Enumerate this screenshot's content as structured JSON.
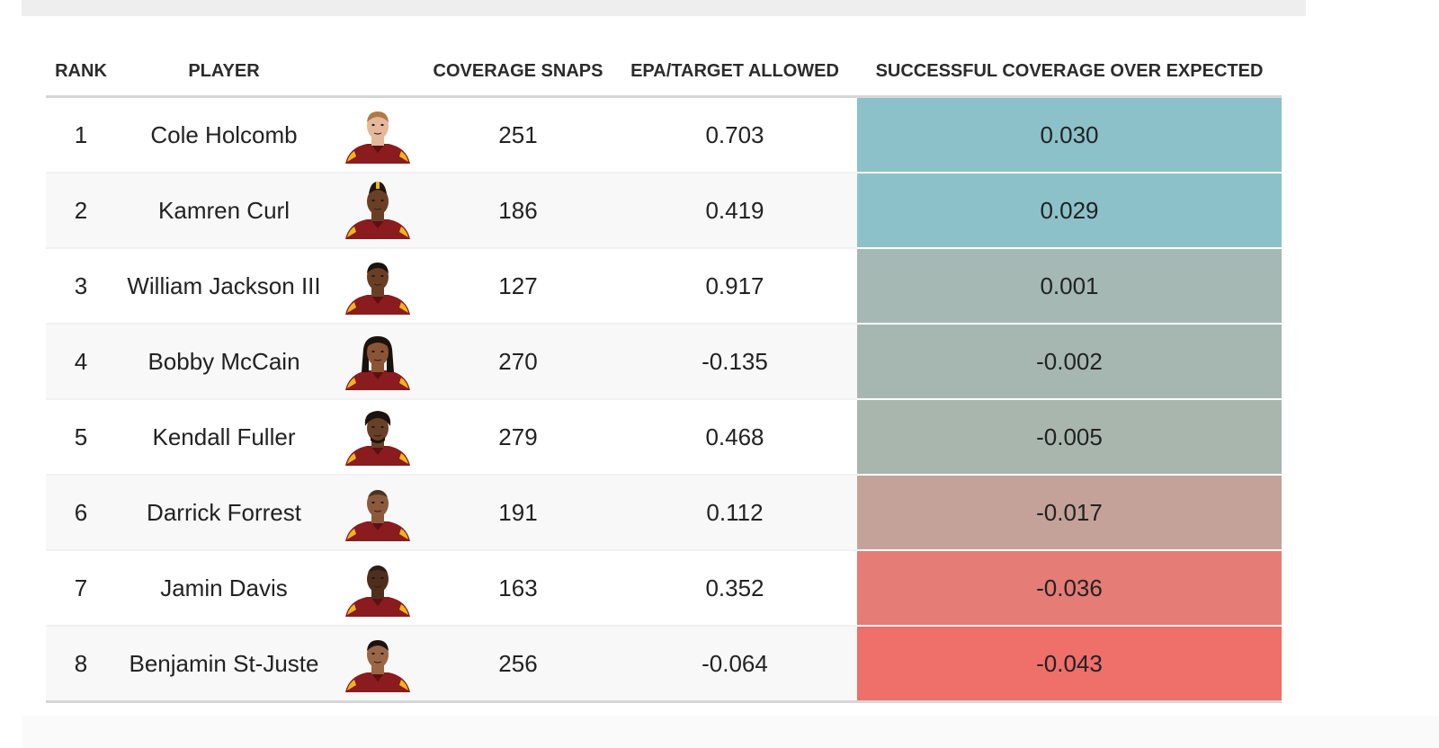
{
  "table": {
    "columns": {
      "rank": "RANK",
      "player": "PLAYER",
      "snaps": "COVERAGE SNAPS",
      "epa": "EPA/TARGET ALLOWED",
      "metric": "SUCCESSFUL COVERAGE OVER EXPECTED"
    },
    "rows": [
      {
        "rank": "1",
        "player": "Cole Holcomb",
        "snaps": "251",
        "epa": "0.703",
        "metric": "0.030",
        "metric_color": "#8dc1ca"
      },
      {
        "rank": "2",
        "player": "Kamren Curl",
        "snaps": "186",
        "epa": "0.419",
        "metric": "0.029",
        "metric_color": "#8dc1ca"
      },
      {
        "rank": "3",
        "player": "William Jackson III",
        "snaps": "127",
        "epa": "0.917",
        "metric": "0.001",
        "metric_color": "#a5b8b3"
      },
      {
        "rank": "4",
        "player": "Bobby McCain",
        "snaps": "270",
        "epa": "-0.135",
        "metric": "-0.002",
        "metric_color": "#a6b7b1"
      },
      {
        "rank": "5",
        "player": "Kendall Fuller",
        "snaps": "279",
        "epa": "0.468",
        "metric": "-0.005",
        "metric_color": "#a9b6ae"
      },
      {
        "rank": "6",
        "player": "Darrick Forrest",
        "snaps": "191",
        "epa": "0.112",
        "metric": "-0.017",
        "metric_color": "#c4a29a"
      },
      {
        "rank": "7",
        "player": "Jamin Davis",
        "snaps": "163",
        "epa": "0.352",
        "metric": "-0.036",
        "metric_color": "#e57c76"
      },
      {
        "rank": "8",
        "player": "Benjamin St-Juste",
        "snaps": "256",
        "epa": "-0.064",
        "metric": "-0.043",
        "metric_color": "#ef6f6a"
      }
    ]
  },
  "headshots": [
    {
      "skin": "#e6b89b",
      "hair": "#b07a45",
      "style": "short"
    },
    {
      "skin": "#6b3f26",
      "hair": "#1f1410",
      "style": "locs"
    },
    {
      "skin": "#6a3e25",
      "hair": "#1b120d",
      "style": "short"
    },
    {
      "skin": "#8a5536",
      "hair": "#1a120c",
      "style": "long"
    },
    {
      "skin": "#6a3f27",
      "hair": "#1c130e",
      "style": "curly"
    },
    {
      "skin": "#8b5a3c",
      "hair": "#1a110c",
      "style": "bald"
    },
    {
      "skin": "#4f2e1d",
      "hair": "#140d09",
      "style": "bald"
    },
    {
      "skin": "#9a6646",
      "hair": "#1b120c",
      "style": "short"
    }
  ],
  "colors": {
    "jersey": "#8a1b1e",
    "jersey_trim": "#f2b51a"
  }
}
